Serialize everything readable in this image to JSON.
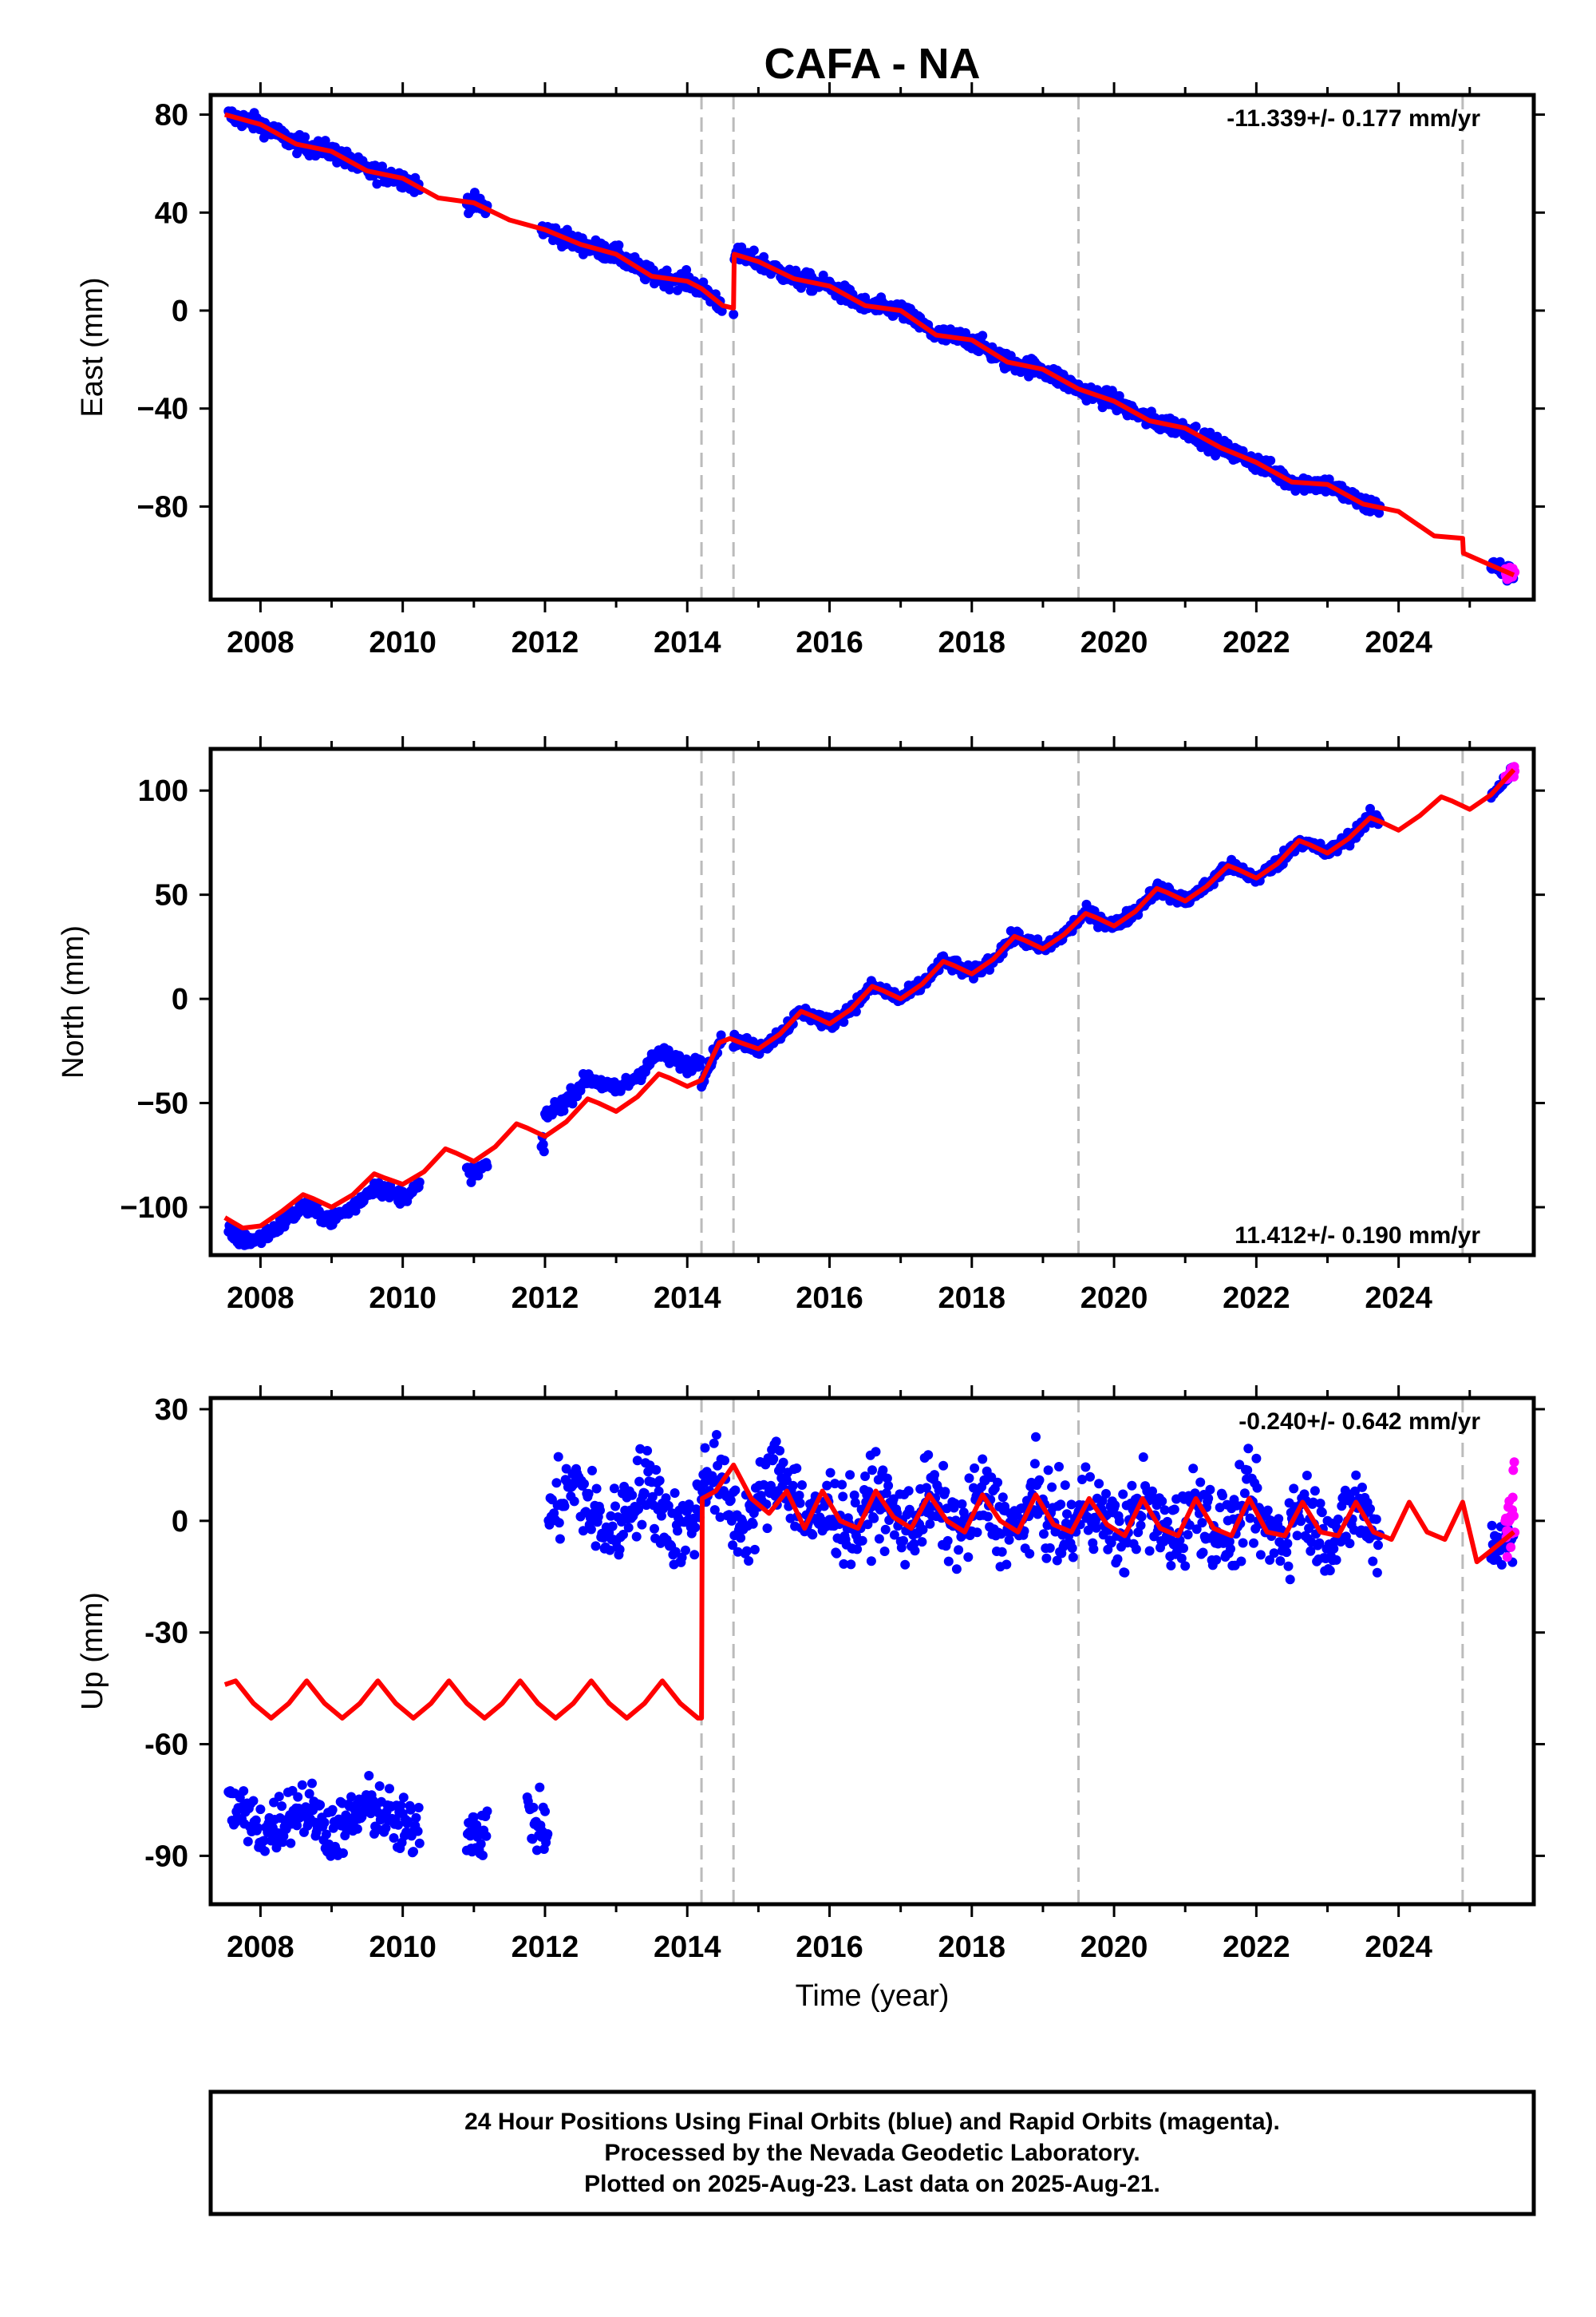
{
  "title": "CAFA - NA",
  "colors": {
    "final_orbits": "#0000ff",
    "rapid_orbits": "#ff00ff",
    "model": "#ff0000",
    "event_lines": "#bbbbbb",
    "frame": "#000000"
  },
  "x_axis": {
    "xlim": [
      2007.3,
      2025.9
    ],
    "ticks": [
      2008,
      2010,
      2012,
      2014,
      2016,
      2018,
      2020,
      2022,
      2024
    ],
    "tick_labels": [
      "2008",
      "2010",
      "2012",
      "2014",
      "2016",
      "2018",
      "2020",
      "2022",
      "2024"
    ],
    "xlabel": "Time (year)"
  },
  "event_lines": [
    2014.2,
    2014.65,
    2019.5,
    2024.9
  ],
  "footer": {
    "line1": "24 Hour Positions Using Final Orbits (blue) and Rapid Orbits (magenta).",
    "line2": "Processed by the Nevada Geodetic Laboratory.",
    "line3": "Plotted on 2025-Aug-23. Last data on 2025-Aug-21."
  },
  "chart_data": [
    {
      "type": "scatter",
      "component": "east",
      "ylabel": "East (mm)",
      "ylim": [
        -118,
        88
      ],
      "yticks": [
        80,
        40,
        0,
        -40,
        -80
      ],
      "ytick_labels": [
        "80",
        "40",
        "0",
        "−40",
        "−80"
      ],
      "rate_label": "-11.339+/- 0.177 mm/yr",
      "rate_position": "top-right",
      "series": [
        {
          "name": "Final Orbits",
          "color": "#0000ff",
          "segments": [
            [
              2007.55,
              2010.25
            ],
            [
              2010.9,
              2011.2
            ],
            [
              2011.95,
              2014.5
            ],
            [
              2014.65,
              2023.75
            ],
            [
              2025.3,
              2025.62
            ]
          ]
        },
        {
          "name": "Rapid Orbits",
          "color": "#ff00ff",
          "segments": [
            [
              2025.5,
              2025.64
            ]
          ]
        }
      ],
      "model": {
        "x": [
          2007.5,
          2008.0,
          2008.5,
          2009.0,
          2009.5,
          2010.0,
          2010.5,
          2011.0,
          2011.5,
          2012.0,
          2012.5,
          2013.0,
          2013.5,
          2014.0,
          2014.2,
          2014.5,
          2014.65,
          2014.66,
          2015.0,
          2015.5,
          2016.0,
          2016.5,
          2017.0,
          2017.5,
          2018.0,
          2018.5,
          2019.0,
          2019.5,
          2020.0,
          2020.5,
          2021.0,
          2021.5,
          2022.0,
          2022.5,
          2023.0,
          2023.5,
          2024.0,
          2024.5,
          2024.9,
          2024.91,
          2025.3,
          2025.62
        ],
        "y": [
          80,
          76,
          68,
          65,
          57,
          54,
          46,
          44,
          37,
          33,
          27,
          23,
          14,
          12,
          9,
          2,
          1,
          23,
          20,
          13,
          10,
          2,
          0,
          -10,
          -12,
          -21,
          -24,
          -32,
          -37,
          -45,
          -48,
          -56,
          -62,
          -70,
          -71,
          -79,
          -82,
          -92,
          -93,
          -99,
          -104,
          -108
        ]
      }
    },
    {
      "type": "scatter",
      "component": "north",
      "ylabel": "North (mm)",
      "ylim": [
        -123,
        120
      ],
      "yticks": [
        100,
        50,
        0,
        -50,
        -100
      ],
      "ytick_labels": [
        "100",
        "50",
        "0",
        "−50",
        "−100"
      ],
      "rate_label": "11.412+/- 0.190 mm/yr",
      "rate_position": "bottom-right",
      "series": [
        {
          "name": "Final Orbits",
          "color": "#0000ff",
          "segments": [
            [
              2007.55,
              2010.25
            ],
            [
              2010.9,
              2011.2
            ],
            [
              2011.95,
              2014.5
            ],
            [
              2014.65,
              2023.75
            ],
            [
              2025.3,
              2025.62
            ]
          ]
        },
        {
          "name": "Rapid Orbits",
          "color": "#ff00ff",
          "segments": [
            [
              2025.5,
              2025.64
            ]
          ]
        }
      ],
      "model": {
        "x": [
          2007.5,
          2007.75,
          2008.0,
          2008.3,
          2008.6,
          2008.75,
          2009.0,
          2009.3,
          2009.6,
          2009.75,
          2010.0,
          2010.3,
          2010.6,
          2010.75,
          2011.0,
          2011.3,
          2011.6,
          2011.75,
          2012.0,
          2012.3,
          2012.6,
          2012.75,
          2013.0,
          2013.3,
          2013.6,
          2013.75,
          2014.0,
          2014.2,
          2014.45,
          2014.6,
          2014.75,
          2015.0,
          2015.3,
          2015.6,
          2015.75,
          2016.0,
          2016.3,
          2016.6,
          2016.75,
          2017.0,
          2017.3,
          2017.6,
          2017.75,
          2018.0,
          2018.3,
          2018.6,
          2018.75,
          2019.0,
          2019.3,
          2019.6,
          2019.75,
          2020.0,
          2020.3,
          2020.6,
          2020.75,
          2021.0,
          2021.3,
          2021.6,
          2021.75,
          2022.0,
          2022.3,
          2022.6,
          2022.75,
          2023.0,
          2023.3,
          2023.6,
          2023.75,
          2024.0,
          2024.3,
          2024.6,
          2024.75,
          2025.0,
          2025.3,
          2025.62
        ],
        "y": [
          -105,
          -110,
          -109,
          -102,
          -94,
          -96,
          -100,
          -94,
          -84,
          -86,
          -89,
          -83,
          -72,
          -74,
          -78,
          -71,
          -60,
          -62,
          -66,
          -59,
          -48,
          -50,
          -54,
          -47,
          -36,
          -38,
          -42,
          -39,
          -21,
          -19,
          -21,
          -24,
          -17,
          -6,
          -8,
          -12,
          -5,
          6,
          4,
          0,
          7,
          18,
          16,
          12,
          19,
          30,
          28,
          24,
          31,
          41,
          39,
          35,
          42,
          53,
          51,
          47,
          54,
          64,
          62,
          58,
          65,
          76,
          74,
          70,
          77,
          87,
          85,
          81,
          88,
          97,
          95,
          91,
          98,
          110
        ]
      }
    },
    {
      "type": "scatter",
      "component": "up",
      "ylabel": "Up (mm)",
      "ylim": [
        -103,
        33
      ],
      "yticks": [
        30,
        0,
        -30,
        -60,
        -90
      ],
      "ytick_labels": [
        "30",
        "0",
        "-30",
        "-60",
        "-90"
      ],
      "rate_label": "-0.240+/- 0.642 mm/yr",
      "rate_position": "top-right",
      "series": [
        {
          "name": "Final Orbits",
          "color": "#0000ff",
          "segments": [
            [
              2007.55,
              2010.25
            ],
            [
              2010.9,
              2011.2
            ],
            [
              2011.75,
              2012.05
            ],
            [
              2012.05,
              2023.75
            ],
            [
              2025.3,
              2025.62
            ]
          ]
        },
        {
          "name": "Rapid Orbits",
          "color": "#ff00ff",
          "segments": [
            [
              2025.5,
              2025.64
            ]
          ]
        }
      ],
      "model": {
        "x": [
          2007.5,
          2007.65,
          2007.9,
          2008.15,
          2008.4,
          2008.65,
          2008.9,
          2009.15,
          2009.4,
          2009.65,
          2009.9,
          2010.15,
          2010.4,
          2010.65,
          2010.9,
          2011.15,
          2011.4,
          2011.65,
          2011.9,
          2012.15,
          2012.4,
          2012.65,
          2012.9,
          2013.15,
          2013.4,
          2013.65,
          2013.9,
          2014.15,
          2014.2,
          2014.21,
          2014.4,
          2014.65,
          2014.9,
          2015.15,
          2015.4,
          2015.65,
          2015.9,
          2016.15,
          2016.4,
          2016.65,
          2016.9,
          2017.15,
          2017.4,
          2017.65,
          2017.9,
          2018.15,
          2018.4,
          2018.65,
          2018.9,
          2019.15,
          2019.4,
          2019.65,
          2019.9,
          2020.15,
          2020.4,
          2020.65,
          2020.9,
          2021.15,
          2021.4,
          2021.65,
          2021.9,
          2022.15,
          2022.4,
          2022.65,
          2022.9,
          2023.15,
          2023.4,
          2023.65,
          2023.9,
          2024.15,
          2024.4,
          2024.65,
          2024.9,
          2025.1,
          2025.3,
          2025.62
        ],
        "y": [
          -44,
          -43,
          -49,
          -53,
          -49,
          -43,
          -49,
          -53,
          -49,
          -43,
          -49,
          -53,
          -49,
          -43,
          -49,
          -53,
          -49,
          -43,
          -49,
          -53,
          -49,
          -43,
          -49,
          -53,
          -49,
          -43,
          -49,
          -53,
          -53,
          6,
          8,
          15,
          6,
          2,
          8,
          -2,
          8,
          0,
          -2,
          8,
          1,
          -2,
          7,
          0,
          -3,
          7,
          0,
          -3,
          7,
          -1,
          -3,
          6,
          -1,
          -4,
          6,
          -2,
          -4,
          6,
          -2,
          -4,
          6,
          -3,
          -4,
          5,
          -3,
          -4,
          5,
          -3,
          -5,
          5,
          -3,
          -5,
          5,
          -11,
          -8,
          -3
        ]
      }
    }
  ]
}
